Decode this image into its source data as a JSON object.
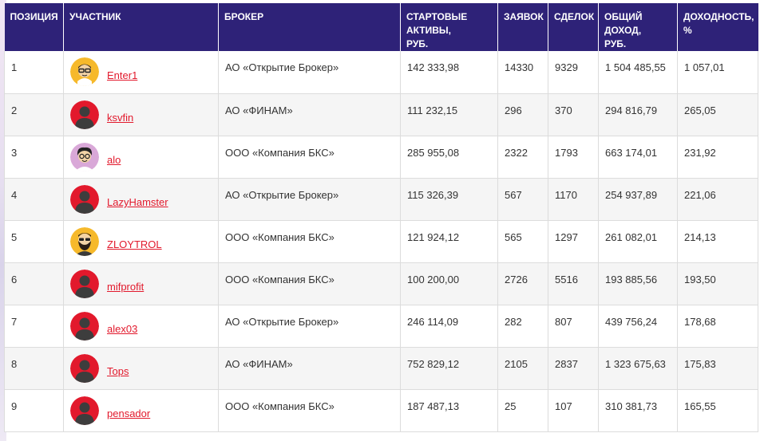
{
  "columns": {
    "position": "ПОЗИЦИЯ",
    "participant": "УЧАСТНИК",
    "broker": "БРОКЕР",
    "start_assets": [
      "СТАРТОВЫЕ",
      "АКТИВЫ,",
      "РУБ."
    ],
    "orders": "ЗАЯВОК",
    "deals": "СДЕЛОК",
    "total_income": [
      "ОБЩИЙ",
      "ДОХОД,",
      "РУБ."
    ],
    "return": [
      "ДОХОДНОСТЬ,",
      "%"
    ]
  },
  "colors": {
    "header_bg": "#2e2278",
    "link": "#e2192c",
    "avatar_default": "#e2192c",
    "avatar_yellow": "#f6b92b",
    "avatar_pink": "#d9a8d8"
  },
  "rows": [
    {
      "position": "1",
      "user": "Enter1",
      "avatar": "yellow-glasses-face-icon",
      "broker": "АО «Открытие Брокер»",
      "start_assets": "142 333,98",
      "orders": "14330",
      "deals": "9329",
      "income": "1 504 485,55",
      "return": "1 057,01"
    },
    {
      "position": "2",
      "user": "ksvfin",
      "avatar": "default-user-icon",
      "broker": "АО «ФИНАМ»",
      "start_assets": "111 232,15",
      "orders": "296",
      "deals": "370",
      "income": "294 816,79",
      "return": "265,05"
    },
    {
      "position": "3",
      "user": "alo",
      "avatar": "pink-glasses-face-icon",
      "broker": "ООО «Компания БКС»",
      "start_assets": "285 955,08",
      "orders": "2322",
      "deals": "1793",
      "income": "663 174,01",
      "return": "231,92"
    },
    {
      "position": "4",
      "user": "LazyHamster",
      "avatar": "default-user-icon",
      "broker": "АО «Открытие Брокер»",
      "start_assets": "115 326,39",
      "orders": "567",
      "deals": "1170",
      "income": "254 937,89",
      "return": "221,06"
    },
    {
      "position": "5",
      "user": "ZLOYTROL",
      "avatar": "yellow-bearded-face-icon",
      "broker": "ООО «Компания БКС»",
      "start_assets": "121 924,12",
      "orders": "565",
      "deals": "1297",
      "income": "261 082,01",
      "return": "214,13"
    },
    {
      "position": "6",
      "user": "mifprofit",
      "avatar": "default-user-icon",
      "broker": "ООО «Компания БКС»",
      "start_assets": "100 200,00",
      "orders": "2726",
      "deals": "5516",
      "income": "193 885,56",
      "return": "193,50"
    },
    {
      "position": "7",
      "user": "alex03",
      "avatar": "default-user-icon",
      "broker": "АО «Открытие Брокер»",
      "start_assets": "246 114,09",
      "orders": "282",
      "deals": "807",
      "income": "439 756,24",
      "return": "178,68"
    },
    {
      "position": "8",
      "user": "Tops",
      "avatar": "default-user-icon",
      "broker": "АО «ФИНАМ»",
      "start_assets": "752 829,12",
      "orders": "2105",
      "deals": "2837",
      "income": "1 323 675,63",
      "return": "175,83"
    },
    {
      "position": "9",
      "user": "pensador",
      "avatar": "default-user-icon",
      "broker": "ООО «Компания БКС»",
      "start_assets": "187 487,13",
      "orders": "25",
      "deals": "107",
      "income": "310 381,73",
      "return": "165,55"
    }
  ]
}
